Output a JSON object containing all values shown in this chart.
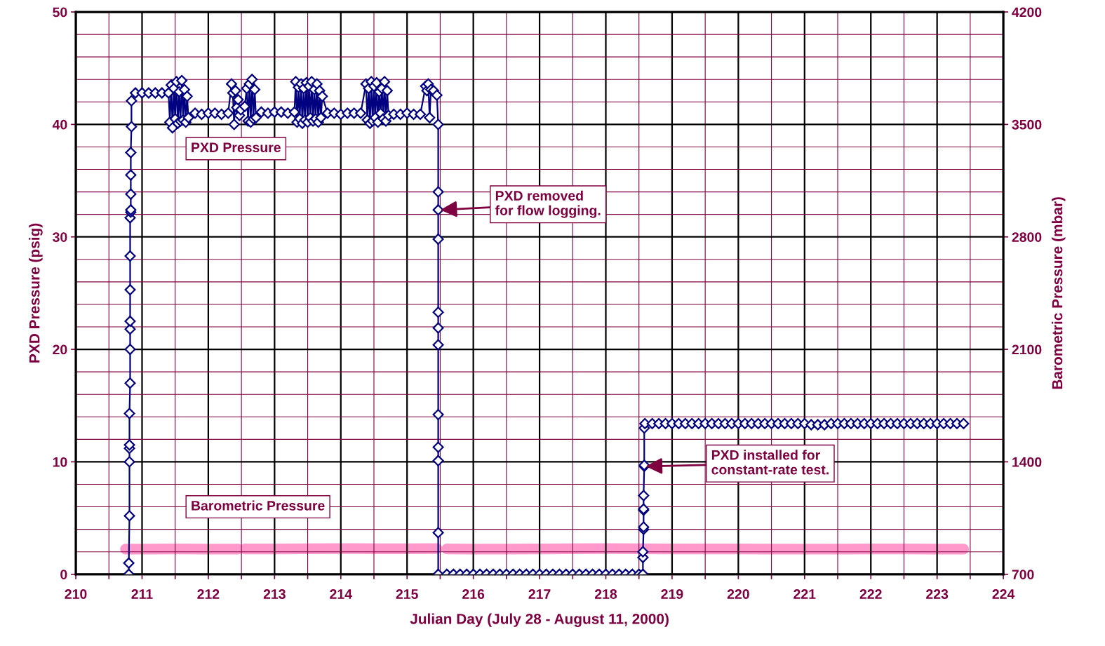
{
  "chart_data": {
    "type": "line",
    "xlabel": "Julian Day (July 28 - August 11, 2000)",
    "ylabel": "PXD Pressure (psig)",
    "y2label": "Barometric Pressure (mbar)",
    "xlim": [
      210,
      224
    ],
    "xticks": [
      210,
      {
        "value": 210.5,
        "label": null
      },
      211,
      {
        "value": 211.5,
        "label": null
      },
      212,
      {
        "value": 212.5,
        "label": null
      },
      213,
      {
        "value": 213.5,
        "label": null
      },
      214,
      {
        "value": 214.5,
        "label": null
      },
      215,
      {
        "value": 215.5,
        "label": null
      },
      216,
      {
        "value": 216.5,
        "label": null
      },
      217,
      {
        "value": 217.5,
        "label": null
      },
      218,
      {
        "value": 218.5,
        "label": null
      },
      219,
      {
        "value": 219.5,
        "label": null
      },
      220,
      {
        "value": 220.5,
        "label": null
      },
      221,
      {
        "value": 221.5,
        "label": null
      },
      222,
      {
        "value": 222.5,
        "label": null
      },
      223,
      {
        "value": 223.5,
        "label": null
      },
      224
    ],
    "ylim": [
      0,
      50
    ],
    "yticks": [
      0,
      {
        "value": 2,
        "label": null
      },
      {
        "value": 4,
        "label": null
      },
      {
        "value": 6,
        "label": null
      },
      {
        "value": 8,
        "label": null
      },
      10,
      {
        "value": 12,
        "label": null
      },
      {
        "value": 14,
        "label": null
      },
      {
        "value": 16,
        "label": null
      },
      {
        "value": 18,
        "label": null
      },
      20,
      {
        "value": 22,
        "label": null
      },
      {
        "value": 24,
        "label": null
      },
      {
        "value": 26,
        "label": null
      },
      {
        "value": 28,
        "label": null
      },
      30,
      {
        "value": 32,
        "label": null
      },
      {
        "value": 34,
        "label": null
      },
      {
        "value": 36,
        "label": null
      },
      {
        "value": 38,
        "label": null
      },
      40,
      {
        "value": 42,
        "label": null
      },
      {
        "value": 44,
        "label": null
      },
      {
        "value": 46,
        "label": null
      },
      {
        "value": 48,
        "label": null
      },
      50
    ],
    "y2lim": [
      700,
      4200
    ],
    "y2ticks": [
      700,
      1400,
      2100,
      2800,
      3500,
      4200
    ],
    "grid": true,
    "legend": false,
    "series": [
      {
        "name": "PXD Pressure",
        "color": "#000080",
        "marker": "diamond",
        "x": [
          210.8,
          210.8,
          210.81,
          210.81,
          210.81,
          210.81,
          210.81,
          210.82,
          210.82,
          210.82,
          210.82,
          210.82,
          210.82,
          210.82,
          210.83,
          210.83,
          210.83,
          210.83,
          210.83,
          210.84,
          210.84,
          210.9,
          211.0,
          211.1,
          211.2,
          211.3,
          211.4,
          211.42,
          211.44,
          211.46,
          211.48,
          211.5,
          211.52,
          211.54,
          211.56,
          211.58,
          211.6,
          211.62,
          211.64,
          211.66,
          211.68,
          211.7,
          211.8,
          211.9,
          212.0,
          212.1,
          212.2,
          212.3,
          212.35,
          212.37,
          212.39,
          212.41,
          212.43,
          212.45,
          212.47,
          212.49,
          212.55,
          212.58,
          212.6,
          212.62,
          212.64,
          212.66,
          212.68,
          212.7,
          212.72,
          212.8,
          212.9,
          213.0,
          213.1,
          213.2,
          213.3,
          213.32,
          213.34,
          213.36,
          213.38,
          213.4,
          213.42,
          213.44,
          213.46,
          213.48,
          213.5,
          213.52,
          213.54,
          213.56,
          213.58,
          213.6,
          213.62,
          213.64,
          213.66,
          213.68,
          213.7,
          213.72,
          213.8,
          213.9,
          214.0,
          214.1,
          214.2,
          214.3,
          214.38,
          214.4,
          214.42,
          214.44,
          214.46,
          214.48,
          214.5,
          214.52,
          214.54,
          214.56,
          214.58,
          214.6,
          214.62,
          214.64,
          214.66,
          214.68,
          214.7,
          214.72,
          214.8,
          214.9,
          215.0,
          215.1,
          215.2,
          215.28,
          215.3,
          215.32,
          215.34,
          215.36,
          215.4,
          215.45,
          215.47,
          215.47,
          215.47,
          215.47,
          215.47,
          215.47,
          215.47,
          215.47,
          215.47,
          215.47,
          215.47,
          215.47,
          215.6,
          215.7,
          215.8,
          215.9,
          216.0,
          216.1,
          216.2,
          216.3,
          216.4,
          216.5,
          216.6,
          216.7,
          216.8,
          216.9,
          217.0,
          217.1,
          217.2,
          217.3,
          217.4,
          217.5,
          217.6,
          217.7,
          217.8,
          217.9,
          218.0,
          218.1,
          218.2,
          218.3,
          218.4,
          218.5,
          218.56,
          218.56,
          218.56,
          218.57,
          218.57,
          218.57,
          218.57,
          218.57,
          218.58,
          218.58,
          218.58,
          218.59,
          218.7,
          218.8,
          218.9,
          219.0,
          219.1,
          219.2,
          219.3,
          219.4,
          219.5,
          219.6,
          219.7,
          219.8,
          219.9,
          220.0,
          220.1,
          220.2,
          220.3,
          220.4,
          220.5,
          220.6,
          220.7,
          220.8,
          220.9,
          221.0,
          221.1,
          221.2,
          221.3,
          221.4,
          221.5,
          221.6,
          221.7,
          221.8,
          221.9,
          222.0,
          222.1,
          222.2,
          222.3,
          222.4,
          222.5,
          222.6,
          222.7,
          222.8,
          222.9,
          223.0,
          223.1,
          223.2,
          223.3,
          223.4
        ],
        "values": [
          0,
          1.0,
          5.2,
          10.0,
          11.2,
          11.5,
          14.3,
          17.0,
          20.0,
          21.8,
          22.5,
          25.3,
          28.3,
          31.7,
          32.2,
          32.4,
          33.8,
          35.5,
          37.5,
          39.8,
          42.1,
          42.8,
          42.8,
          42.8,
          42.8,
          42.8,
          42.8,
          40.2,
          43.5,
          39.7,
          43.2,
          40.5,
          43.8,
          40.1,
          42.9,
          40.3,
          43.9,
          40.4,
          43.1,
          40.2,
          42.5,
          40.6,
          41.0,
          40.9,
          41.0,
          41.0,
          40.9,
          41.0,
          43.6,
          42.8,
          40.0,
          43.0,
          41.5,
          42.2,
          40.8,
          41.3,
          41.6,
          43.2,
          40.3,
          43.6,
          40.2,
          44.0,
          40.5,
          43.1,
          40.6,
          41.1,
          41.0,
          41.1,
          41.1,
          41.0,
          41.1,
          43.8,
          40.2,
          43.3,
          40.5,
          43.6,
          40.1,
          43.2,
          40.4,
          43.7,
          40.2,
          43.4,
          40.6,
          43.8,
          40.3,
          43.1,
          40.5,
          43.6,
          40.2,
          43.0,
          40.6,
          42.5,
          41.0,
          41.0,
          40.9,
          41.0,
          41.0,
          41.0,
          43.6,
          40.4,
          43.2,
          40.1,
          43.8,
          40.3,
          43.4,
          40.6,
          43.7,
          40.2,
          42.9,
          41.0,
          43.2,
          40.5,
          43.8,
          40.3,
          43.0,
          40.8,
          40.9,
          40.9,
          41.0,
          40.9,
          40.9,
          43.4,
          43.0,
          43.6,
          40.6,
          43.1,
          43.0,
          42.6,
          40.0,
          34.0,
          32.4,
          29.8,
          23.3,
          21.9,
          20.4,
          14.2,
          11.3,
          10.1,
          3.7,
          0.0,
          0,
          0,
          0,
          0,
          0,
          0,
          0,
          0,
          0,
          0,
          0,
          0,
          0,
          0,
          0,
          0,
          0,
          0,
          0,
          0,
          0,
          0,
          0,
          0,
          0,
          0,
          0,
          0,
          0,
          0,
          0,
          1.5,
          2.0,
          4.0,
          4.2,
          5.7,
          5.8,
          7.0,
          9.6,
          9.7,
          13.0,
          13.4,
          13.4,
          13.4,
          13.4,
          13.4,
          13.4,
          13.4,
          13.4,
          13.4,
          13.4,
          13.4,
          13.4,
          13.4,
          13.4,
          13.4,
          13.4,
          13.4,
          13.4,
          13.4,
          13.4,
          13.4,
          13.4,
          13.4,
          13.4,
          13.4,
          13.3,
          13.3,
          13.3,
          13.4,
          13.4,
          13.4,
          13.4,
          13.4,
          13.4,
          13.4,
          13.4,
          13.4,
          13.4,
          13.4,
          13.4,
          13.4,
          13.4,
          13.4,
          13.4,
          13.4,
          13.4,
          13.4,
          13.4,
          13.4
        ]
      },
      {
        "name": "Barometric Pressure",
        "color": "#ff99cc",
        "axis": "y2",
        "marker": "none",
        "x": [
          210.75,
          211.0,
          211.5,
          212.0,
          212.45,
          212.5,
          212.55,
          213.0,
          213.5,
          214.0,
          214.5,
          215.0,
          215.45,
          215.5,
          215.6,
          216.0,
          216.5,
          217.0,
          217.5,
          218.0,
          218.5,
          219.0,
          219.5,
          220.0,
          220.5,
          221.0,
          221.5,
          222.0,
          222.5,
          223.0,
          223.4
        ],
        "values": [
          857,
          857,
          858,
          857,
          857,
          null,
          858,
          858,
          859,
          860,
          859,
          859,
          860,
          null,
          858,
          857,
          857,
          858,
          859,
          860,
          859,
          858,
          858,
          858,
          857,
          857,
          857,
          858,
          858,
          857,
          857
        ]
      }
    ],
    "annotations": [
      {
        "text": "PXD removed\nfor flow logging.",
        "x": 215.5,
        "y": 32.4
      },
      {
        "text": "PXD installed for\nconstant-rate test.",
        "x": 218.6,
        "y": 9.6
      }
    ]
  }
}
